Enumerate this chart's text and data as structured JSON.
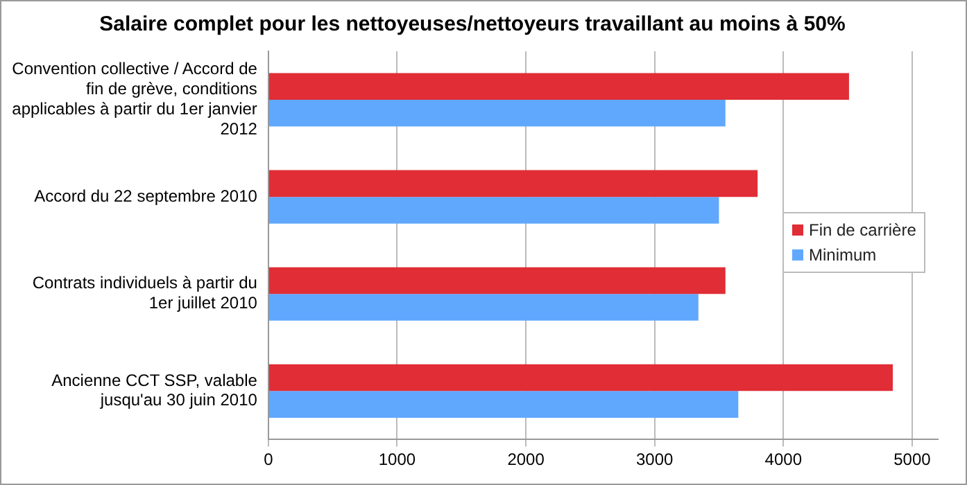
{
  "chart_data": {
    "type": "bar",
    "orientation": "horizontal",
    "title": "Salaire complet pour les nettoyeuses/nettoyeurs travaillant au moins à 50%",
    "categories": [
      "Convention collective / Accord de fin de grève, conditions applicables à partir du 1er janvier 2012",
      "Accord du 22 septembre 2010",
      "Contrats individuels à partir du 1er juillet 2010",
      "Ancienne CCT SSP, valable jusqu'au 30 juin 2010"
    ],
    "series": [
      {
        "name": "Fin de carrière",
        "color": "#e02d36",
        "values": [
          4510,
          3800,
          3550,
          4850
        ]
      },
      {
        "name": "Minimum",
        "color": "#60a8fe",
        "values": [
          3550,
          3500,
          3340,
          3650
        ]
      }
    ],
    "xlim": [
      0,
      5200
    ],
    "xticks": [
      0,
      1000,
      2000,
      3000,
      4000,
      5000
    ],
    "grid": "x",
    "legend": "right"
  }
}
